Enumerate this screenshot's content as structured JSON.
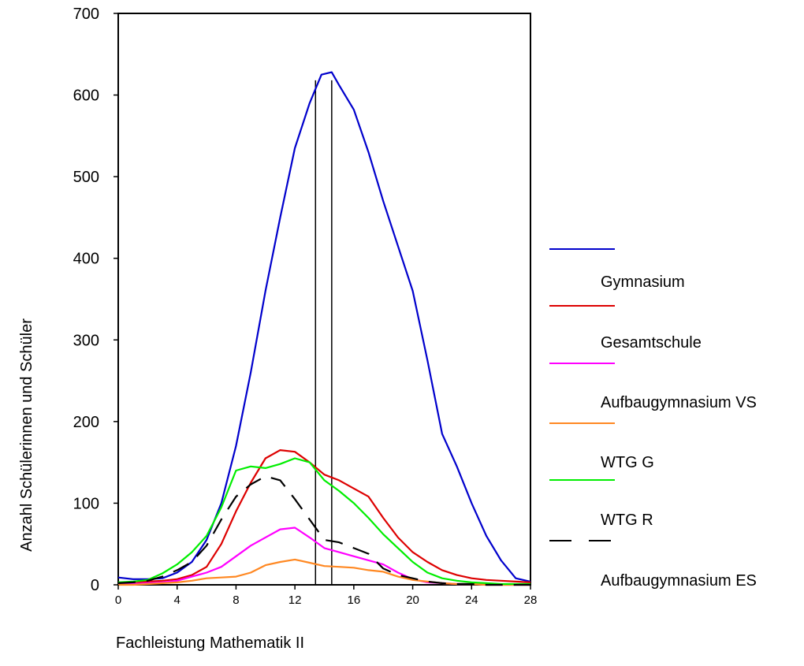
{
  "chart_data": {
    "type": "line",
    "xlabel": "Fachleistung Mathematik II",
    "ylabel": "Anzahl Schülerinnen und Schüler",
    "xlim": [
      0,
      28
    ],
    "ylim": [
      0,
      700
    ],
    "x_ticks": [
      "0",
      "4",
      "8",
      "12",
      "16",
      "20",
      "24",
      "28"
    ],
    "y_ticks": [
      "0",
      "100",
      "200",
      "300",
      "400",
      "500",
      "600",
      "700"
    ],
    "grid": false,
    "legend_position": "right",
    "reference_lines_x": [
      13.4,
      14.5
    ],
    "series": [
      {
        "name": "Gymnasium",
        "color": "#0000cc",
        "dash": false,
        "points": [
          [
            0,
            9
          ],
          [
            1,
            7
          ],
          [
            2,
            7
          ],
          [
            3,
            8
          ],
          [
            4,
            15
          ],
          [
            5,
            28
          ],
          [
            6,
            55
          ],
          [
            7,
            100
          ],
          [
            8,
            170
          ],
          [
            9,
            260
          ],
          [
            10,
            360
          ],
          [
            11,
            450
          ],
          [
            12,
            535
          ],
          [
            13,
            590
          ],
          [
            13.8,
            625
          ],
          [
            14.5,
            628
          ],
          [
            15,
            612
          ],
          [
            16,
            582
          ],
          [
            17,
            530
          ],
          [
            18,
            470
          ],
          [
            19,
            415
          ],
          [
            20,
            360
          ],
          [
            21,
            275
          ],
          [
            22,
            185
          ],
          [
            23,
            145
          ],
          [
            24,
            100
          ],
          [
            25,
            60
          ],
          [
            26,
            30
          ],
          [
            27,
            8
          ],
          [
            28,
            4
          ]
        ]
      },
      {
        "name": "Gesamtschule",
        "color": "#dd0000",
        "dash": false,
        "points": [
          [
            0,
            2
          ],
          [
            1,
            3
          ],
          [
            2,
            4
          ],
          [
            3,
            5
          ],
          [
            4,
            7
          ],
          [
            5,
            12
          ],
          [
            6,
            22
          ],
          [
            7,
            50
          ],
          [
            8,
            90
          ],
          [
            9,
            125
          ],
          [
            10,
            155
          ],
          [
            11,
            165
          ],
          [
            12,
            163
          ],
          [
            13,
            150
          ],
          [
            14,
            135
          ],
          [
            15,
            128
          ],
          [
            16,
            118
          ],
          [
            17,
            108
          ],
          [
            18,
            82
          ],
          [
            19,
            58
          ],
          [
            20,
            40
          ],
          [
            21,
            28
          ],
          [
            22,
            18
          ],
          [
            23,
            12
          ],
          [
            24,
            8
          ],
          [
            25,
            6
          ],
          [
            26,
            5
          ],
          [
            27,
            4
          ],
          [
            28,
            3
          ]
        ]
      },
      {
        "name": "Aufbaugymnasium VS",
        "color": "#ff00ff",
        "dash": false,
        "points": [
          [
            0,
            1
          ],
          [
            1,
            1
          ],
          [
            2,
            2
          ],
          [
            3,
            3
          ],
          [
            4,
            5
          ],
          [
            5,
            10
          ],
          [
            6,
            15
          ],
          [
            7,
            22
          ],
          [
            8,
            35
          ],
          [
            9,
            48
          ],
          [
            10,
            58
          ],
          [
            11,
            68
          ],
          [
            12,
            70
          ],
          [
            13,
            58
          ],
          [
            14,
            45
          ],
          [
            15,
            40
          ],
          [
            16,
            35
          ],
          [
            17,
            30
          ],
          [
            18,
            25
          ],
          [
            19,
            15
          ],
          [
            20,
            7
          ],
          [
            21,
            3
          ],
          [
            22,
            2
          ],
          [
            23,
            1
          ],
          [
            24,
            1
          ],
          [
            25,
            0
          ],
          [
            26,
            0
          ],
          [
            27,
            0
          ],
          [
            28,
            0
          ]
        ]
      },
      {
        "name": "WTG G",
        "color": "#ff8822",
        "dash": false,
        "points": [
          [
            0,
            0
          ],
          [
            1,
            0
          ],
          [
            2,
            1
          ],
          [
            3,
            2
          ],
          [
            4,
            3
          ],
          [
            5,
            5
          ],
          [
            6,
            8
          ],
          [
            7,
            9
          ],
          [
            8,
            10
          ],
          [
            9,
            15
          ],
          [
            10,
            24
          ],
          [
            11,
            28
          ],
          [
            12,
            31
          ],
          [
            13,
            27
          ],
          [
            14,
            23
          ],
          [
            15,
            22
          ],
          [
            16,
            21
          ],
          [
            17,
            18
          ],
          [
            18,
            16
          ],
          [
            19,
            10
          ],
          [
            20,
            6
          ],
          [
            21,
            4
          ],
          [
            22,
            2
          ],
          [
            23,
            1
          ],
          [
            24,
            1
          ],
          [
            25,
            0
          ],
          [
            26,
            0
          ],
          [
            27,
            0
          ],
          [
            28,
            0
          ]
        ]
      },
      {
        "name": "WTG R",
        "color": "#00ee00",
        "dash": false,
        "points": [
          [
            0,
            3
          ],
          [
            1,
            4
          ],
          [
            2,
            6
          ],
          [
            3,
            14
          ],
          [
            4,
            25
          ],
          [
            5,
            40
          ],
          [
            6,
            60
          ],
          [
            7,
            95
          ],
          [
            8,
            140
          ],
          [
            9,
            145
          ],
          [
            10,
            143
          ],
          [
            11,
            148
          ],
          [
            12,
            155
          ],
          [
            13,
            150
          ],
          [
            14,
            128
          ],
          [
            15,
            115
          ],
          [
            16,
            100
          ],
          [
            17,
            82
          ],
          [
            18,
            62
          ],
          [
            19,
            45
          ],
          [
            20,
            28
          ],
          [
            21,
            15
          ],
          [
            22,
            8
          ],
          [
            23,
            5
          ],
          [
            24,
            3
          ],
          [
            25,
            2
          ],
          [
            26,
            1
          ],
          [
            27,
            1
          ],
          [
            28,
            1
          ]
        ]
      },
      {
        "name": "Aufbaugymnasium ES",
        "color": "#000000",
        "dash": true,
        "points": [
          [
            0,
            2
          ],
          [
            1,
            3
          ],
          [
            2,
            5
          ],
          [
            3,
            10
          ],
          [
            4,
            18
          ],
          [
            5,
            28
          ],
          [
            6,
            48
          ],
          [
            7,
            80
          ],
          [
            8,
            108
          ],
          [
            9,
            123
          ],
          [
            10,
            133
          ],
          [
            11,
            128
          ],
          [
            12,
            105
          ],
          [
            13,
            80
          ],
          [
            14,
            55
          ],
          [
            15,
            52
          ],
          [
            16,
            45
          ],
          [
            17,
            38
          ],
          [
            18,
            20
          ],
          [
            19,
            12
          ],
          [
            20,
            8
          ],
          [
            21,
            4
          ],
          [
            22,
            2
          ],
          [
            23,
            1
          ],
          [
            24,
            1
          ],
          [
            25,
            0
          ],
          [
            26,
            0
          ],
          [
            27,
            0
          ],
          [
            28,
            0
          ]
        ]
      }
    ]
  }
}
